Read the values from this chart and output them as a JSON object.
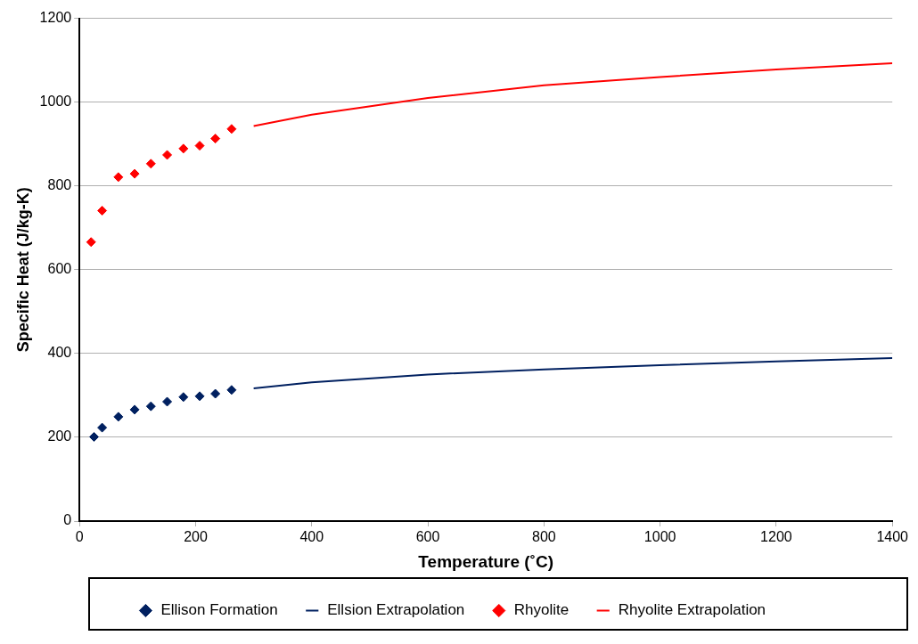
{
  "chart_data": {
    "type": "scatter",
    "xlabel": "Temperature (˚C)",
    "ylabel": "Specific Heat (J/kg-K)",
    "xlim": [
      0,
      1400
    ],
    "xticks": [
      0,
      200,
      400,
      600,
      800,
      1000,
      1200,
      1400
    ],
    "ylim": [
      0,
      1200
    ],
    "yticks": [
      0,
      200,
      400,
      600,
      800,
      1000,
      1200
    ],
    "grid": "y",
    "legend": "bottom",
    "series": [
      {
        "name": "Ellison Formation",
        "marker": "diamond",
        "color": "#002060",
        "x": [
          25,
          39,
          67,
          95,
          123,
          151,
          179,
          207,
          234,
          262
        ],
        "values": [
          201,
          223,
          249,
          266,
          274,
          285,
          296,
          298,
          304,
          313
        ]
      },
      {
        "name": "Ellsion Extrapolation",
        "type": "line",
        "marker": "none",
        "color": "#002060",
        "x": [
          300,
          400,
          600,
          800,
          1000,
          1200,
          1400
        ],
        "values": [
          317,
          331,
          350,
          362,
          372,
          381,
          389
        ]
      },
      {
        "name": "Rhyolite",
        "marker": "diamond",
        "color": "#ff0000",
        "x": [
          20,
          39,
          67,
          95,
          123,
          151,
          179,
          207,
          234,
          262
        ],
        "values": [
          666,
          741,
          821,
          829,
          853,
          874,
          889,
          896,
          913,
          936
        ]
      },
      {
        "name": "Rhyolite Extrapolation",
        "type": "line",
        "marker": "none",
        "color": "#ff0000",
        "x": [
          300,
          400,
          600,
          800,
          1000,
          1200,
          1400
        ],
        "values": [
          943,
          970,
          1010,
          1040,
          1060,
          1078,
          1093
        ]
      }
    ]
  }
}
